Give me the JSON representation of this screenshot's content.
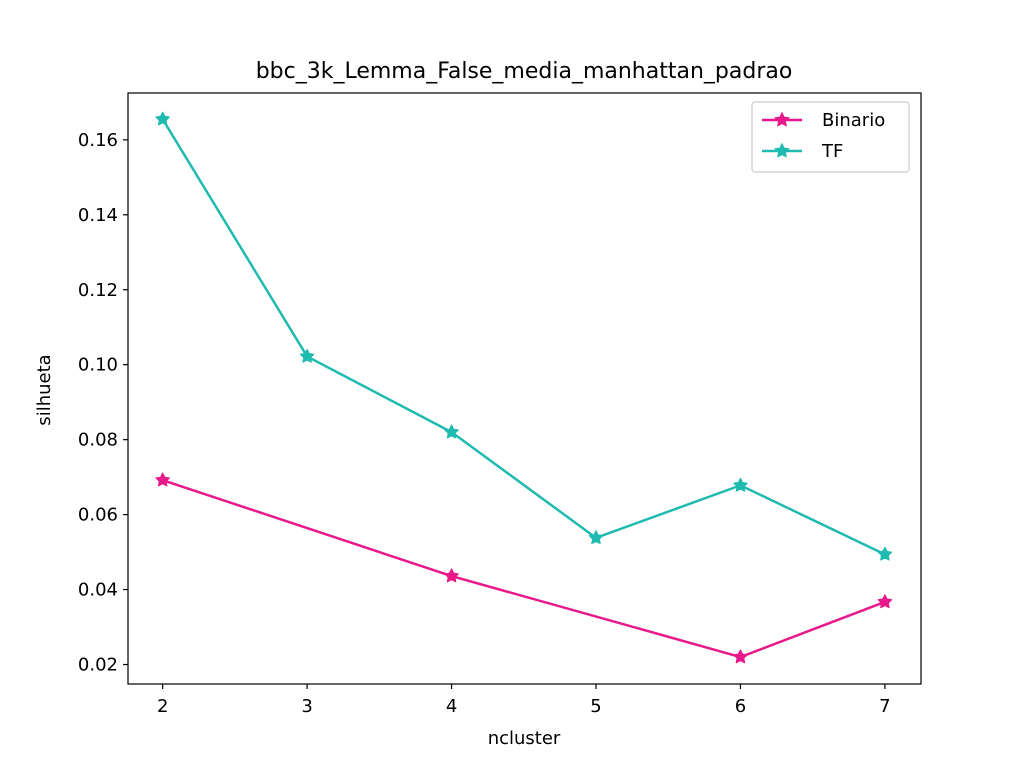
{
  "chart_data": {
    "type": "line",
    "title": "bbc_3k_Lemma_False_media_manhattan_padrao",
    "xlabel": "ncluster",
    "ylabel": "silhueta",
    "x": [
      2,
      3,
      4,
      5,
      6,
      7
    ],
    "xlim": [
      1.76,
      7.25
    ],
    "ylim": [
      0.0148,
      0.1725
    ],
    "xticks": [
      2,
      3,
      4,
      5,
      6,
      7
    ],
    "yticks": [
      0.02,
      0.04,
      0.06,
      0.08,
      0.1,
      0.12,
      0.14,
      0.16
    ],
    "ytick_labels": [
      "0.02",
      "0.04",
      "0.06",
      "0.08",
      "0.10",
      "0.12",
      "0.14",
      "0.16"
    ],
    "grid": false,
    "legend_position": "top-right",
    "marker": "star",
    "series": [
      {
        "name": "Binario",
        "color": "#e8198b",
        "points": [
          [
            2,
            0.0692
          ],
          [
            4,
            0.0436
          ],
          [
            6,
            0.022
          ],
          [
            7,
            0.0367
          ]
        ]
      },
      {
        "name": "TF",
        "color": "#1fbab0",
        "points": [
          [
            2,
            0.1655
          ],
          [
            3,
            0.1022
          ],
          [
            4,
            0.082
          ],
          [
            5,
            0.0538
          ],
          [
            6,
            0.0678
          ],
          [
            7,
            0.0494
          ]
        ]
      }
    ]
  }
}
